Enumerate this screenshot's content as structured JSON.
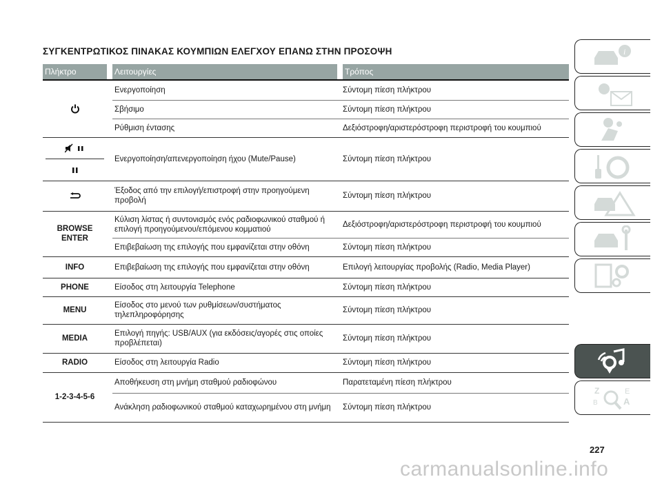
{
  "title": "ΣΥΓΚΕΝΤΡΩΤΙΚΟΣ ΠΙΝΑΚΑΣ ΚΟΥΜΠΙΩΝ ΕΛΕΓΧΟΥ ΕΠΑΝΩ ΣΤΗΝ ΠΡΟΣΟΨΗ",
  "headers": {
    "key": "Πλήκτρο",
    "functions": "Λειτουργίες",
    "mode": "Τρόπος"
  },
  "colors": {
    "header_bg": "#97a5a3",
    "active_tab": "#4b5351"
  },
  "rows": {
    "power": {
      "icon": "power-icon",
      "items": [
        {
          "fn": "Ενεργοποίηση",
          "mode": "Σύντομη πίεση πλήκτρου"
        },
        {
          "fn": "Σβήσιμο",
          "mode": "Σύντομη πίεση πλήκτρου"
        },
        {
          "fn": "Ρύθμιση έντασης",
          "mode": "Δεξιόστροφη/αριστερόστροφη περιστροφή του κουμπιού"
        }
      ]
    },
    "mute": {
      "icons": [
        "mute-pause-icon",
        "pause-icon"
      ],
      "fn": "Ενεργοποίηση/απενεργοποίηση ήχου (Mute/Pause)",
      "mode": "Σύντομη πίεση πλήκτρου"
    },
    "back": {
      "icon": "back-arrow-icon",
      "fn": "Έξοδος από την επιλογή/επιστροφή στην προηγούμενη προβολή",
      "mode": "Σύντομη πίεση πλήκτρου"
    },
    "browse": {
      "key": "BROWSE ENTER",
      "items": [
        {
          "fn": "Κύλιση λίστας ή συντονισμός ενός ραδιοφωνικού σταθμού ή επιλογή προηγούμενου/επόμενου κομματιού",
          "mode": "Δεξιόστροφη/αριστερόστροφη περιστροφή του κουμπιού"
        },
        {
          "fn": "Επιβεβαίωση της επιλογής που εμφανίζεται στην οθόνη",
          "mode": "Σύντομη πίεση πλήκτρου"
        }
      ]
    },
    "info": {
      "key": "INFO",
      "fn": "Επιβεβαίωση της επιλογής που εμφανίζεται στην οθόνη",
      "mode": "Επιλογή λειτουργίας προβολής (Radio, Media Player)"
    },
    "phone": {
      "key": "PHONE",
      "fn": "Είσοδος στη λειτουργία Telephone",
      "mode": "Σύντομη πίεση πλήκτρου"
    },
    "menu": {
      "key": "MENU",
      "fn": "Είσοδος στο μενού των ρυθμίσεων/συστήματος τηλεπληροφόρησης",
      "mode": "Σύντομη πίεση πλήκτρου"
    },
    "media": {
      "key": "MEDIA",
      "fn": "Επιλογή πηγής: USB/AUX (για εκδόσεις/αγορές στις οποίες προβλέπεται)",
      "mode": "Σύντομη πίεση πλήκτρου"
    },
    "radio": {
      "key": "RADIO",
      "fn": "Είσοδος στη λειτουργία Radio",
      "mode": "Σύντομη πίεση πλήκτρου"
    },
    "presets": {
      "key": "1-2-3-4-5-6",
      "items": [
        {
          "fn": "Αποθήκευση στη μνήμη σταθμού ραδιοφώνου",
          "mode": "Παρατεταμένη πίεση πλήκτρου"
        },
        {
          "fn": "Ανάκληση ραδιοφωνικού σταθμού καταχωρημένου στη μνήμη",
          "mode": "Σύντομη πίεση πλήκτρου"
        }
      ]
    }
  },
  "side_tabs": [
    "car-info-icon",
    "warning-lights-icon",
    "safety-airbag-icon",
    "key-steering-icon",
    "emergency-icon",
    "maintenance-icon",
    "technical-data-icon",
    "multimedia-icon",
    "index-icon"
  ],
  "active_tab": "multimedia-icon",
  "page_number": "227",
  "watermark": "carmanualsonline.info"
}
